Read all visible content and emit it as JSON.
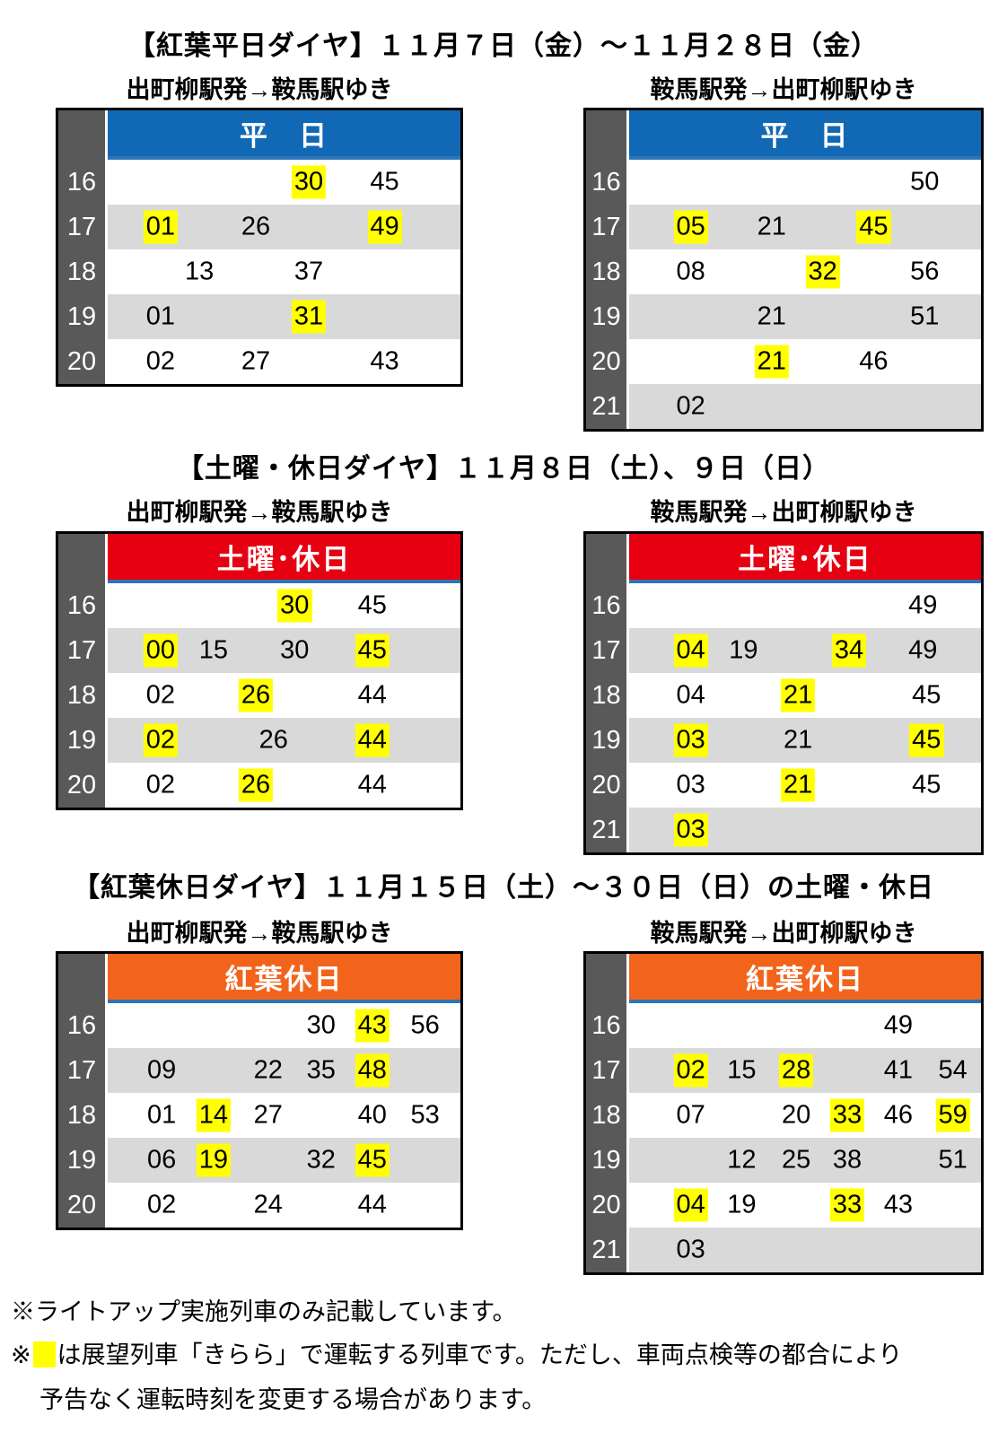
{
  "colors": {
    "hour_column": "#595959",
    "row_alt": "#D9D9D9",
    "highlight": "#FFFF00",
    "header_underline": "#2E75B6",
    "weekday_header": "#1169B5",
    "saturday_header": "#E60012",
    "momiji_header": "#F2641C",
    "border": "#000000"
  },
  "footer": {
    "note1": "※ライトアップ実施列車のみ記載しています。",
    "note2_prefix": "※",
    "note2_text": "は展望列車「きらら」で運転する列車です。ただし、車両点検等の都合により",
    "note3": "予告なく運転時刻を変更する場合があります。"
  },
  "sections": [
    {
      "title": "【紅葉平日ダイヤ】１１月７日（金）～１１月２８日（金）",
      "left_label": "出町柳駅発→鞍馬駅ゆき",
      "right_label": "鞍馬駅発→出町柳駅ゆき",
      "header_label": "平　日",
      "header_color": "#1169B5",
      "tables": [
        {
          "direction": "demachiyanagi-to-kurama",
          "rows": [
            {
              "hour": "16",
              "cells": [
                {
                  "m": "30",
                  "x": 57,
                  "k": true
                },
                {
                  "m": "45",
                  "x": 78.5,
                  "k": false
                }
              ]
            },
            {
              "hour": "17",
              "cells": [
                {
                  "m": "01",
                  "x": 15,
                  "k": true
                },
                {
                  "m": "26",
                  "x": 42,
                  "k": false
                },
                {
                  "m": "49",
                  "x": 78.5,
                  "k": true
                }
              ]
            },
            {
              "hour": "18",
              "cells": [
                {
                  "m": "13",
                  "x": 26,
                  "k": false
                },
                {
                  "m": "37",
                  "x": 57,
                  "k": false
                }
              ]
            },
            {
              "hour": "19",
              "cells": [
                {
                  "m": "01",
                  "x": 15,
                  "k": false
                },
                {
                  "m": "31",
                  "x": 57,
                  "k": true
                }
              ]
            },
            {
              "hour": "20",
              "cells": [
                {
                  "m": "02",
                  "x": 15,
                  "k": false
                },
                {
                  "m": "27",
                  "x": 42,
                  "k": false
                },
                {
                  "m": "43",
                  "x": 78.5,
                  "k": false
                }
              ]
            }
          ]
        },
        {
          "direction": "kurama-to-demachiyanagi",
          "rows": [
            {
              "hour": "16",
              "cells": [
                {
                  "m": "50",
                  "x": 84,
                  "k": false
                }
              ]
            },
            {
              "hour": "17",
              "cells": [
                {
                  "m": "05",
                  "x": 17.5,
                  "k": true
                },
                {
                  "m": "21",
                  "x": 40.5,
                  "k": false
                },
                {
                  "m": "45",
                  "x": 69.5,
                  "k": true
                }
              ]
            },
            {
              "hour": "18",
              "cells": [
                {
                  "m": "08",
                  "x": 17.5,
                  "k": false
                },
                {
                  "m": "32",
                  "x": 55,
                  "k": true
                },
                {
                  "m": "56",
                  "x": 84,
                  "k": false
                }
              ]
            },
            {
              "hour": "19",
              "cells": [
                {
                  "m": "21",
                  "x": 40.5,
                  "k": false
                },
                {
                  "m": "51",
                  "x": 84,
                  "k": false
                }
              ]
            },
            {
              "hour": "20",
              "cells": [
                {
                  "m": "21",
                  "x": 40.5,
                  "k": true
                },
                {
                  "m": "46",
                  "x": 69.5,
                  "k": false
                }
              ]
            },
            {
              "hour": "21",
              "cells": [
                {
                  "m": "02",
                  "x": 17.5,
                  "k": false
                }
              ]
            }
          ]
        }
      ]
    },
    {
      "title": "【土曜・休日ダイヤ】１１月８日（土）、９日（日）",
      "left_label": "出町柳駅発→鞍馬駅ゆき",
      "right_label": "鞍馬駅発→出町柳駅ゆき",
      "header_label": "土曜･休日",
      "header_color": "#E60012",
      "tables": [
        {
          "direction": "demachiyanagi-to-kurama",
          "rows": [
            {
              "hour": "16",
              "cells": [
                {
                  "m": "30",
                  "x": 53,
                  "k": true
                },
                {
                  "m": "45",
                  "x": 75,
                  "k": false
                }
              ]
            },
            {
              "hour": "17",
              "cells": [
                {
                  "m": "00",
                  "x": 15,
                  "k": true
                },
                {
                  "m": "15",
                  "x": 30,
                  "k": false
                },
                {
                  "m": "30",
                  "x": 53,
                  "k": false
                },
                {
                  "m": "45",
                  "x": 75,
                  "k": true
                }
              ]
            },
            {
              "hour": "18",
              "cells": [
                {
                  "m": "02",
                  "x": 15,
                  "k": false
                },
                {
                  "m": "26",
                  "x": 42,
                  "k": true
                },
                {
                  "m": "44",
                  "x": 75,
                  "k": false
                }
              ]
            },
            {
              "hour": "19",
              "cells": [
                {
                  "m": "02",
                  "x": 15,
                  "k": true
                },
                {
                  "m": "26",
                  "x": 47,
                  "k": false
                },
                {
                  "m": "44",
                  "x": 75,
                  "k": true
                }
              ]
            },
            {
              "hour": "20",
              "cells": [
                {
                  "m": "02",
                  "x": 15,
                  "k": false
                },
                {
                  "m": "26",
                  "x": 42,
                  "k": true
                },
                {
                  "m": "44",
                  "x": 75,
                  "k": false
                }
              ]
            }
          ]
        },
        {
          "direction": "kurama-to-demachiyanagi",
          "rows": [
            {
              "hour": "16",
              "cells": [
                {
                  "m": "49",
                  "x": 83.5,
                  "k": false
                }
              ]
            },
            {
              "hour": "17",
              "cells": [
                {
                  "m": "04",
                  "x": 17.5,
                  "k": true
                },
                {
                  "m": "19",
                  "x": 32.5,
                  "k": false
                },
                {
                  "m": "34",
                  "x": 62.5,
                  "k": true
                },
                {
                  "m": "49",
                  "x": 83.5,
                  "k": false
                }
              ]
            },
            {
              "hour": "18",
              "cells": [
                {
                  "m": "04",
                  "x": 17.5,
                  "k": false
                },
                {
                  "m": "21",
                  "x": 48,
                  "k": true
                },
                {
                  "m": "45",
                  "x": 84.5,
                  "k": false
                }
              ]
            },
            {
              "hour": "19",
              "cells": [
                {
                  "m": "03",
                  "x": 17.5,
                  "k": true
                },
                {
                  "m": "21",
                  "x": 48,
                  "k": false
                },
                {
                  "m": "45",
                  "x": 84.5,
                  "k": true
                }
              ]
            },
            {
              "hour": "20",
              "cells": [
                {
                  "m": "03",
                  "x": 17.5,
                  "k": false
                },
                {
                  "m": "21",
                  "x": 48,
                  "k": true
                },
                {
                  "m": "45",
                  "x": 84.5,
                  "k": false
                }
              ]
            },
            {
              "hour": "21",
              "cells": [
                {
                  "m": "03",
                  "x": 17.5,
                  "k": true
                }
              ]
            }
          ]
        }
      ]
    },
    {
      "title": "【紅葉休日ダイヤ】１１月１５日（土）～３０日（日）の土曜・休日",
      "left_label": "出町柳駅発→鞍馬駅ゆき",
      "right_label": "鞍馬駅発→出町柳駅ゆき",
      "header_label": "紅葉休日",
      "header_color": "#F2641C",
      "tables": [
        {
          "direction": "demachiyanagi-to-kurama",
          "rows": [
            {
              "hour": "16",
              "cells": [
                {
                  "m": "30",
                  "x": 60.5,
                  "k": false
                },
                {
                  "m": "43",
                  "x": 75,
                  "k": true
                },
                {
                  "m": "56",
                  "x": 90,
                  "k": false
                }
              ]
            },
            {
              "hour": "17",
              "cells": [
                {
                  "m": "09",
                  "x": 15.3,
                  "k": false
                },
                {
                  "m": "22",
                  "x": 45.5,
                  "k": false
                },
                {
                  "m": "35",
                  "x": 60.5,
                  "k": false
                },
                {
                  "m": "48",
                  "x": 75,
                  "k": true
                }
              ]
            },
            {
              "hour": "18",
              "cells": [
                {
                  "m": "01",
                  "x": 15.3,
                  "k": false
                },
                {
                  "m": "14",
                  "x": 30,
                  "k": true
                },
                {
                  "m": "27",
                  "x": 45.5,
                  "k": false
                },
                {
                  "m": "40",
                  "x": 75,
                  "k": false
                },
                {
                  "m": "53",
                  "x": 90,
                  "k": false
                }
              ]
            },
            {
              "hour": "19",
              "cells": [
                {
                  "m": "06",
                  "x": 15.3,
                  "k": false
                },
                {
                  "m": "19",
                  "x": 30,
                  "k": true
                },
                {
                  "m": "32",
                  "x": 60.5,
                  "k": false
                },
                {
                  "m": "45",
                  "x": 75,
                  "k": true
                }
              ]
            },
            {
              "hour": "20",
              "cells": [
                {
                  "m": "02",
                  "x": 15.3,
                  "k": false
                },
                {
                  "m": "24",
                  "x": 45.5,
                  "k": false
                },
                {
                  "m": "44",
                  "x": 75,
                  "k": false
                }
              ]
            }
          ]
        },
        {
          "direction": "kurama-to-demachiyanagi",
          "rows": [
            {
              "hour": "16",
              "cells": [
                {
                  "m": "49",
                  "x": 76.5,
                  "k": false
                }
              ]
            },
            {
              "hour": "17",
              "cells": [
                {
                  "m": "02",
                  "x": 17.5,
                  "k": true
                },
                {
                  "m": "15",
                  "x": 32,
                  "k": false
                },
                {
                  "m": "28",
                  "x": 47.5,
                  "k": true
                },
                {
                  "m": "41",
                  "x": 76.5,
                  "k": false
                },
                {
                  "m": "54",
                  "x": 92,
                  "k": false
                }
              ]
            },
            {
              "hour": "18",
              "cells": [
                {
                  "m": "07",
                  "x": 17.5,
                  "k": false
                },
                {
                  "m": "20",
                  "x": 47.5,
                  "k": false
                },
                {
                  "m": "33",
                  "x": 62,
                  "k": true
                },
                {
                  "m": "46",
                  "x": 76.5,
                  "k": false
                },
                {
                  "m": "59",
                  "x": 92,
                  "k": true
                }
              ]
            },
            {
              "hour": "19",
              "cells": [
                {
                  "m": "12",
                  "x": 32,
                  "k": false
                },
                {
                  "m": "25",
                  "x": 47.5,
                  "k": false
                },
                {
                  "m": "38",
                  "x": 62,
                  "k": false
                },
                {
                  "m": "51",
                  "x": 92,
                  "k": false
                }
              ]
            },
            {
              "hour": "20",
              "cells": [
                {
                  "m": "04",
                  "x": 17.5,
                  "k": true
                },
                {
                  "m": "19",
                  "x": 32,
                  "k": false
                },
                {
                  "m": "33",
                  "x": 62,
                  "k": true
                },
                {
                  "m": "43",
                  "x": 76.5,
                  "k": false
                }
              ]
            },
            {
              "hour": "21",
              "cells": [
                {
                  "m": "03",
                  "x": 17.5,
                  "k": false
                }
              ]
            }
          ]
        }
      ]
    }
  ]
}
